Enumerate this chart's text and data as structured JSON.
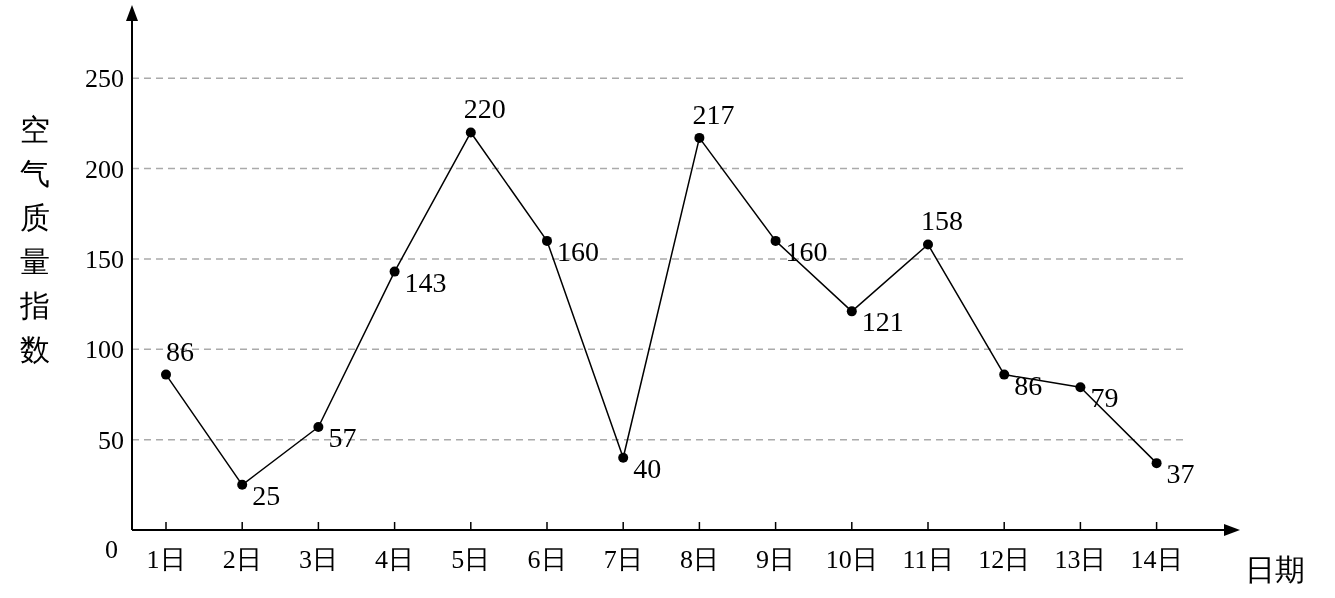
{
  "chart_data": {
    "type": "line",
    "xlabel": "日期",
    "ylabel": "空气质量指数",
    "categories": [
      "1日",
      "2日",
      "3日",
      "4日",
      "5日",
      "6日",
      "7日",
      "8日",
      "9日",
      "10日",
      "11日",
      "12日",
      "13日",
      "14日"
    ],
    "values": [
      86,
      25,
      57,
      143,
      220,
      160,
      40,
      217,
      160,
      121,
      158,
      86,
      79,
      37
    ],
    "color": "#000000",
    "marker": "circle",
    "data_labels": true,
    "grid": "y",
    "ylim": [
      0,
      285
    ],
    "yticks": [
      0,
      50,
      100,
      150,
      200,
      250
    ]
  }
}
